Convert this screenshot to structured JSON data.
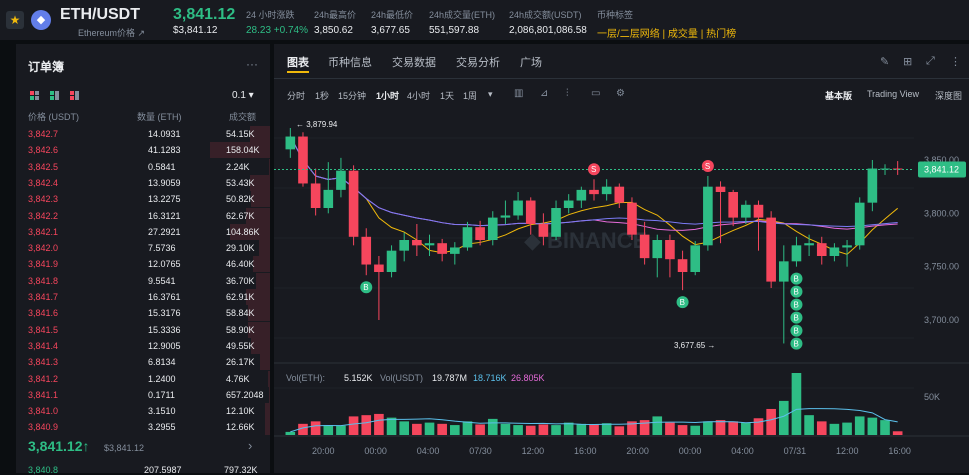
{
  "header": {
    "star": "★",
    "coin": "◆",
    "pair": "ETH/USDT",
    "pair_sub": "Ethereum价格 ↗",
    "price": "3,841.12",
    "price_sub": "$3,841.12",
    "stats": [
      {
        "label": "24 小时涨跌",
        "value": "28.23 +0.74%",
        "color": "#2ebd85"
      },
      {
        "label": "24h最高价",
        "value": "3,850.62"
      },
      {
        "label": "24h最低价",
        "value": "3,677.65"
      },
      {
        "label": "24h成交量(ETH)",
        "value": "551,597.88"
      },
      {
        "label": "24h成交额(USDT)",
        "value": "2,086,801,086.58"
      },
      {
        "label": "币种标签",
        "value": "一层/二层网络 | 成交量 | 热门榜",
        "color": "#f0b90b"
      }
    ]
  },
  "orderbook": {
    "title": "订单簿",
    "more": "···",
    "tick": "0.1 ▾",
    "headers": [
      "价格 (USDT)",
      "数量 (ETH)",
      "成交额"
    ],
    "asks": [
      [
        "3,842.7",
        "14.0931",
        "54.15K",
        0.34
      ],
      [
        "3,842.6",
        "41.1283",
        "158.04K",
        1.0
      ],
      [
        "3,842.5",
        "0.5841",
        "2.24K",
        0.02
      ],
      [
        "3,842.4",
        "13.9059",
        "53.43K",
        0.34
      ],
      [
        "3,842.3",
        "13.2275",
        "50.82K",
        0.32
      ],
      [
        "3,842.2",
        "16.3121",
        "62.67K",
        0.4
      ],
      [
        "3,842.1",
        "27.2921",
        "104.86K",
        0.66
      ],
      [
        "3,842.0",
        "7.5736",
        "29.10K",
        0.18
      ],
      [
        "3,841.9",
        "12.0765",
        "46.40K",
        0.29
      ],
      [
        "3,841.8",
        "9.5541",
        "36.70K",
        0.23
      ],
      [
        "3,841.7",
        "16.3761",
        "62.91K",
        0.4
      ],
      [
        "3,841.6",
        "15.3176",
        "58.84K",
        0.37
      ],
      [
        "3,841.5",
        "15.3336",
        "58.90K",
        0.37
      ],
      [
        "3,841.4",
        "12.9005",
        "49.55K",
        0.31
      ],
      [
        "3,841.3",
        "6.8134",
        "26.17K",
        0.17
      ],
      [
        "3,841.2",
        "1.2400",
        "4.76K",
        0.03
      ],
      [
        "3,841.1",
        "0.1711",
        "657.2048",
        0.01
      ],
      [
        "3,841.0",
        "3.1510",
        "12.10K",
        0.08
      ],
      [
        "3,840.9",
        "3.2955",
        "12.66K",
        0.08
      ]
    ],
    "last_price": "3,841.12",
    "last_arrow": "↑",
    "last_usd": "$3,841.12",
    "next_price": "3,840.8",
    "next_qty": "207.5987",
    "next_total": "797.32K",
    "chev": "›"
  },
  "chart_tabs": [
    "图表",
    "币种信息",
    "交易数据",
    "交易分析",
    "广场"
  ],
  "chart_icons": [
    "✎",
    "⊞",
    "⤢",
    "⋮"
  ],
  "intervals": [
    "分时",
    "1秒",
    "15分钟",
    "1小时",
    "4小时",
    "1天",
    "1周",
    "▾"
  ],
  "tool_icons": [
    "▥",
    "⊿",
    "⫶",
    "▭",
    "⚙"
  ],
  "views": [
    "基本版",
    "Trading View",
    "深度图"
  ],
  "chart_data": {
    "type": "candlestick",
    "price_axis": [
      {
        "v": 3850,
        "l": "3,850.00"
      },
      {
        "v": 3800,
        "l": "3,800.00"
      },
      {
        "v": 3750,
        "l": "3,750.00"
      },
      {
        "v": 3700,
        "l": "3,700.00"
      }
    ],
    "last_label": "3,841.12",
    "high_label": "3,879.94",
    "low_label": "3,677.65",
    "watermark": "◆ BINANCE",
    "time_labels": [
      "20:00",
      "00:00",
      "04:00",
      "07/30",
      "12:00",
      "16:00",
      "20:00",
      "00:00",
      "04:00",
      "07/31",
      "12:00",
      "16:00"
    ],
    "vol_legend": {
      "a": "Vol(ETH):",
      "b": "5.152K",
      "c": "Vol(USDT)",
      "d": "19.787M",
      "e": "18.716K",
      "f": "26.805K"
    },
    "vol_axis": "50K",
    "candles": [
      [
        3860,
        3872,
        3852,
        3880
      ],
      [
        3872,
        3828,
        3825,
        3876
      ],
      [
        3828,
        3805,
        3798,
        3842
      ],
      [
        3805,
        3822,
        3800,
        3848
      ],
      [
        3822,
        3840,
        3815,
        3852
      ],
      [
        3840,
        3778,
        3770,
        3845
      ],
      [
        3778,
        3752,
        3742,
        3786
      ],
      [
        3752,
        3745,
        3700,
        3760
      ],
      [
        3745,
        3765,
        3740,
        3770
      ],
      [
        3765,
        3775,
        3755,
        3782
      ],
      [
        3775,
        3770,
        3760,
        3790
      ],
      [
        3770,
        3772,
        3760,
        3780
      ],
      [
        3772,
        3762,
        3755,
        3776
      ],
      [
        3762,
        3768,
        3752,
        3773
      ],
      [
        3768,
        3787,
        3765,
        3792
      ],
      [
        3787,
        3775,
        3770,
        3793
      ],
      [
        3775,
        3796,
        3770,
        3802
      ],
      [
        3796,
        3798,
        3790,
        3812
      ],
      [
        3798,
        3812,
        3794,
        3820
      ],
      [
        3812,
        3790,
        3780,
        3815
      ],
      [
        3790,
        3778,
        3770,
        3800
      ],
      [
        3778,
        3805,
        3775,
        3812
      ],
      [
        3805,
        3812,
        3800,
        3818
      ],
      [
        3812,
        3822,
        3805,
        3825
      ],
      [
        3822,
        3818,
        3812,
        3832
      ],
      [
        3818,
        3825,
        3812,
        3832
      ],
      [
        3825,
        3810,
        3805,
        3828
      ],
      [
        3810,
        3780,
        3775,
        3815
      ],
      [
        3780,
        3758,
        3752,
        3792
      ],
      [
        3758,
        3775,
        3740,
        3780
      ],
      [
        3775,
        3757,
        3740,
        3780
      ],
      [
        3757,
        3745,
        3728,
        3765
      ],
      [
        3745,
        3770,
        3742,
        3774
      ],
      [
        3770,
        3825,
        3765,
        3835
      ],
      [
        3825,
        3820,
        3772,
        3830
      ],
      [
        3820,
        3796,
        3788,
        3822
      ],
      [
        3796,
        3808,
        3790,
        3812
      ],
      [
        3808,
        3796,
        3765,
        3812
      ],
      [
        3796,
        3736,
        3730,
        3802
      ],
      [
        3736,
        3755,
        3678,
        3770
      ],
      [
        3755,
        3770,
        3750,
        3778
      ],
      [
        3770,
        3772,
        3760,
        3780
      ],
      [
        3772,
        3760,
        3752,
        3778
      ],
      [
        3760,
        3768,
        3755,
        3772
      ],
      [
        3768,
        3770,
        3750,
        3775
      ],
      [
        3770,
        3810,
        3766,
        3815
      ],
      [
        3810,
        3842,
        3802,
        3850
      ],
      [
        3842,
        3842,
        3836,
        3846
      ],
      [
        3842,
        3841,
        3836,
        3849
      ]
    ],
    "volumes": [
      0.05,
      0.18,
      0.22,
      0.16,
      0.15,
      0.3,
      0.32,
      0.34,
      0.28,
      0.22,
      0.18,
      0.2,
      0.18,
      0.16,
      0.22,
      0.17,
      0.26,
      0.18,
      0.16,
      0.15,
      0.17,
      0.16,
      0.2,
      0.18,
      0.17,
      0.19,
      0.14,
      0.22,
      0.24,
      0.3,
      0.2,
      0.16,
      0.15,
      0.22,
      0.24,
      0.22,
      0.2,
      0.27,
      0.42,
      0.55,
      1.0,
      0.32,
      0.22,
      0.18,
      0.2,
      0.3,
      0.28,
      0.24,
      0.06
    ],
    "markers": [
      {
        "i": 6,
        "t": "B",
        "p": "below"
      },
      {
        "i": 24,
        "t": "S",
        "p": "above"
      },
      {
        "i": 31,
        "t": "B",
        "p": "below"
      },
      {
        "i": 33,
        "t": "S",
        "p": "above"
      },
      {
        "i": 40,
        "t": "B",
        "p": "stack"
      }
    ]
  }
}
